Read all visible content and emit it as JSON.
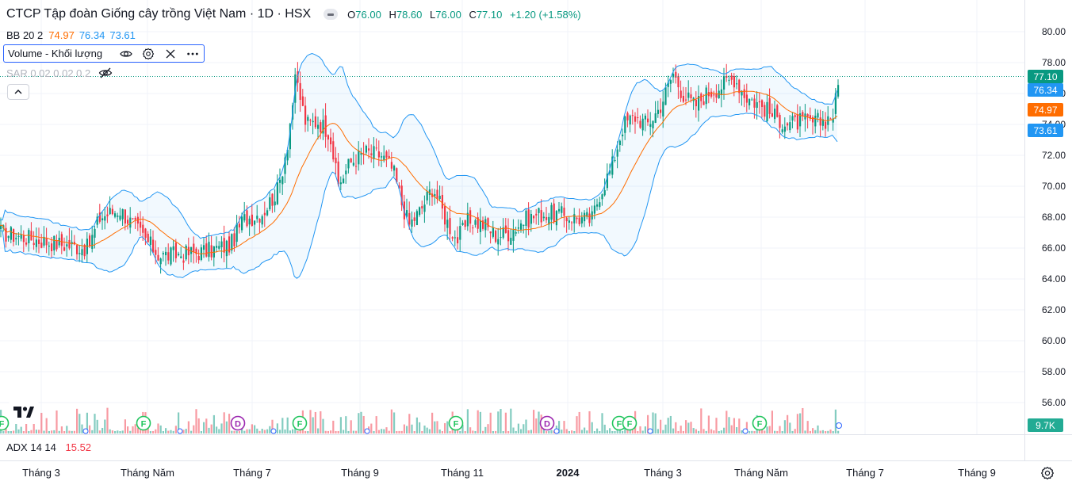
{
  "header": {
    "title": "CTCP Tập đoàn Giống cây trồng Việt Nam · 1D · HSX",
    "ohlc": [
      {
        "k": "O",
        "v": "76.00"
      },
      {
        "k": "H",
        "v": "78.60"
      },
      {
        "k": "L",
        "v": "76.00"
      },
      {
        "k": "C",
        "v": "77.10"
      }
    ],
    "change": "+1.20 (+1.58%)"
  },
  "bb": {
    "label": "BB 20 2",
    "middle": "74.97",
    "upper": "76.34",
    "lower": "73.61"
  },
  "volume_legend": {
    "label": "Volume - Khối lượng"
  },
  "sar": {
    "label": "SAR 0.02 0.02 0.2"
  },
  "price_scale": {
    "ticks": [
      "80.00",
      "78.00",
      "76.00",
      "74.00",
      "72.00",
      "70.00",
      "68.00",
      "66.00",
      "64.00",
      "62.00",
      "60.00",
      "58.00",
      "56.00"
    ]
  },
  "price_labels": {
    "close": "77.10",
    "upper": "76.34",
    "middle": "74.97",
    "lower": "73.61",
    "volume": "9.7K"
  },
  "adx": {
    "label": "ADX 14 14",
    "value": "15.52"
  },
  "time_axis": {
    "labels": [
      "Tháng 3",
      "Tháng Năm",
      "Tháng 7",
      "Tháng 9",
      "Tháng 11",
      "2024",
      "Tháng 3",
      "Tháng Năm",
      "Tháng 7",
      "Tháng 9"
    ]
  },
  "events": [
    "F",
    "F",
    "D",
    "F",
    "F",
    "D",
    "F",
    "F",
    "F"
  ],
  "colors": {
    "up": "#089981",
    "down": "#f23645",
    "bb_mid": "#ff6d00",
    "bb_band": "#2196f3",
    "accent": "#2962ff"
  },
  "icons": [
    "eye-icon",
    "gear-icon",
    "close-icon",
    "more-icon",
    "eye-off-icon",
    "chevron-up-icon",
    "settings-icon",
    "tradingview-logo"
  ]
}
